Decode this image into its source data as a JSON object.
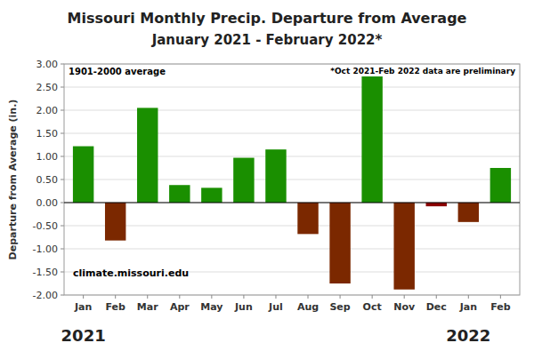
{
  "chart_data": {
    "type": "bar",
    "title": "Missouri Monthly Precip. Departure from Average",
    "subtitle": "January 2021 - February 2022*",
    "ylabel": "Departure from Average (in.)",
    "annotations": [
      "1901-2000 average",
      "*Oct 2021-Feb 2022 data are preliminary",
      "climate.missouri.edu"
    ],
    "category_groups": [
      {
        "label": "2021",
        "start": 0
      },
      {
        "label": "2022",
        "start": 12
      }
    ],
    "categories": [
      "Jan",
      "Feb",
      "Mar",
      "Apr",
      "May",
      "Jun",
      "Jul",
      "Aug",
      "Sep",
      "Oct",
      "Nov",
      "Dec",
      "Jan",
      "Feb"
    ],
    "values": [
      1.22,
      -0.82,
      2.05,
      0.38,
      0.32,
      0.97,
      1.15,
      -0.68,
      -1.75,
      2.73,
      -1.88,
      -0.08,
      -0.42,
      0.75
    ],
    "colors": [
      "#1a8f00",
      "#7B2800",
      "#1a8f00",
      "#1a8f00",
      "#1a8f00",
      "#1a8f00",
      "#1a8f00",
      "#7B2800",
      "#7B2800",
      "#1a8f00",
      "#7B2800",
      "#8B0000",
      "#7B2800",
      "#1a8f00"
    ],
    "ylim": [
      -2.0,
      3.0
    ],
    "yticks": [
      {
        "value": -2.0,
        "label": "-2.00"
      },
      {
        "value": -1.5,
        "label": "-1.50"
      },
      {
        "value": -1.0,
        "label": "-1.00"
      },
      {
        "value": -0.5,
        "label": "-0.50"
      },
      {
        "value": 0.0,
        "label": "0.00"
      },
      {
        "value": 0.5,
        "label": "0.50"
      },
      {
        "value": 1.0,
        "label": "1.00"
      },
      {
        "value": 1.5,
        "label": "1.50"
      },
      {
        "value": 2.0,
        "label": "2.00"
      },
      {
        "value": 2.5,
        "label": "2.50"
      },
      {
        "value": 3.0,
        "label": "3.00"
      }
    ],
    "grid": true
  }
}
